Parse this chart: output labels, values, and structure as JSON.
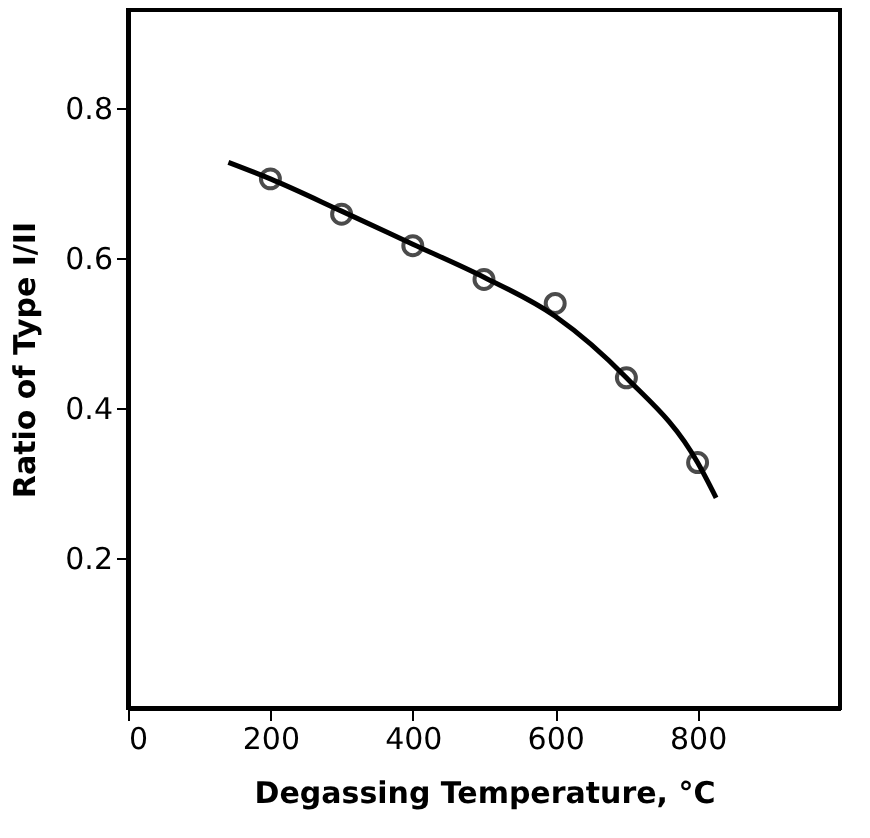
{
  "chart_data": {
    "type": "scatter",
    "xlabel": "Degassing Temperature, °C",
    "ylabel": "Ratio of Type I/II",
    "xlim": [
      0,
      1000
    ],
    "ylim": [
      0,
      0.93
    ],
    "xticks": [
      0,
      200,
      400,
      600,
      800
    ],
    "yticks": [
      0.2,
      0.4,
      0.6,
      0.8
    ],
    "grid": false,
    "marker": "circle",
    "series": [
      {
        "color": "#000000",
        "x": [
          200,
          300,
          400,
          500,
          600,
          700,
          800
        ],
        "values": [
          0.705,
          0.658,
          0.616,
          0.571,
          0.539,
          0.44,
          0.327
        ]
      },
      {
        "type": "line",
        "color": "#000000",
        "marker": "none",
        "line_style": "solid",
        "x": [
          141,
          200,
          300,
          400,
          500,
          600,
          700,
          800,
          826
        ],
        "values": [
          0.727,
          0.705,
          0.662,
          0.618,
          0.574,
          0.522,
          0.44,
          0.327,
          0.28
        ]
      }
    ]
  }
}
